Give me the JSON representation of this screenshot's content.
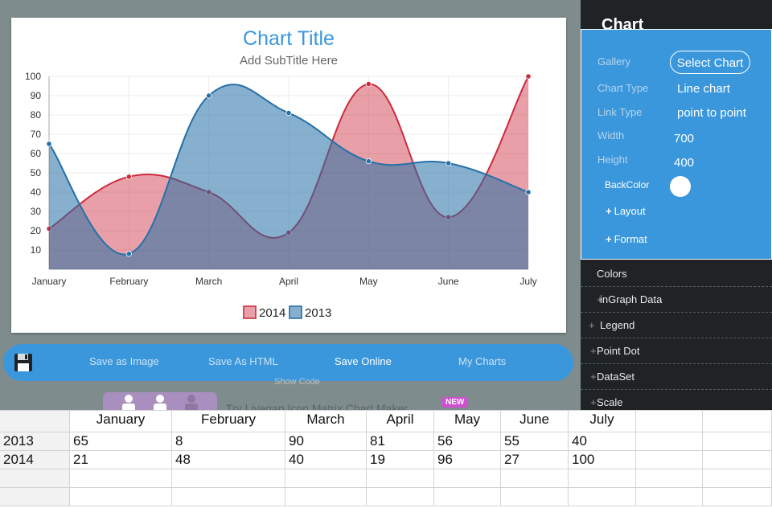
{
  "chart_data": {
    "type": "area",
    "title": "Chart Title",
    "subtitle": "Add SubTitle Here",
    "categories": [
      "January",
      "February",
      "March",
      "April",
      "May",
      "June",
      "July"
    ],
    "y_ticks": [
      10,
      20,
      30,
      40,
      50,
      60,
      70,
      80,
      90,
      100
    ],
    "ylim": [
      0,
      100
    ],
    "legend_position": "bottom-center",
    "series": [
      {
        "name": "2014",
        "values": [
          21,
          48,
          40,
          19,
          96,
          27,
          100
        ],
        "color": "#cc2b3c",
        "fill": "rgba(204,43,60,0.45)"
      },
      {
        "name": "2013",
        "values": [
          65,
          8,
          90,
          81,
          56,
          55,
          40
        ],
        "color": "#2470a8",
        "fill": "rgba(36,112,168,0.55)"
      }
    ]
  },
  "toolbar": {
    "save_as_image": "Save as Image",
    "save_as_html": "Save As HTML",
    "save_online": "Save Online",
    "my_charts": "My Charts",
    "show_code": "Show Code"
  },
  "promo": {
    "text": "Try Livegap Icon Matrix Chart Maker",
    "badge": "NEW"
  },
  "panel": {
    "title": "Chart",
    "gallery_label": "Gallery",
    "select_chart": "Select Chart",
    "chart_type_label": "Chart Type",
    "chart_type_value": "Line chart",
    "link_type_label": "Link Type",
    "link_type_value": "point to point",
    "width_label": "Width",
    "width_value": "700",
    "height_label": "Height",
    "height_value": "400",
    "backcolor_label": "BackColor",
    "layout_label": "Layout",
    "format_label": "Format",
    "sections": [
      "Colors",
      "inGraph Data",
      "Legend",
      "Point Dot",
      "DataSet",
      "Scale"
    ]
  },
  "grid": {
    "headers": [
      "",
      "January",
      "February",
      "March",
      "April",
      "May",
      "June",
      "July",
      "",
      ""
    ],
    "rows": [
      [
        "2013",
        "65",
        "8",
        "90",
        "81",
        "56",
        "55",
        "40",
        "",
        ""
      ],
      [
        "2014",
        "21",
        "48",
        "40",
        "19",
        "96",
        "27",
        "100",
        "",
        ""
      ],
      [
        "",
        "",
        "",
        "",
        "",
        "",
        "",
        "",
        "",
        ""
      ],
      [
        "",
        "",
        "",
        "",
        "",
        "",
        "",
        "",
        "",
        ""
      ]
    ]
  }
}
